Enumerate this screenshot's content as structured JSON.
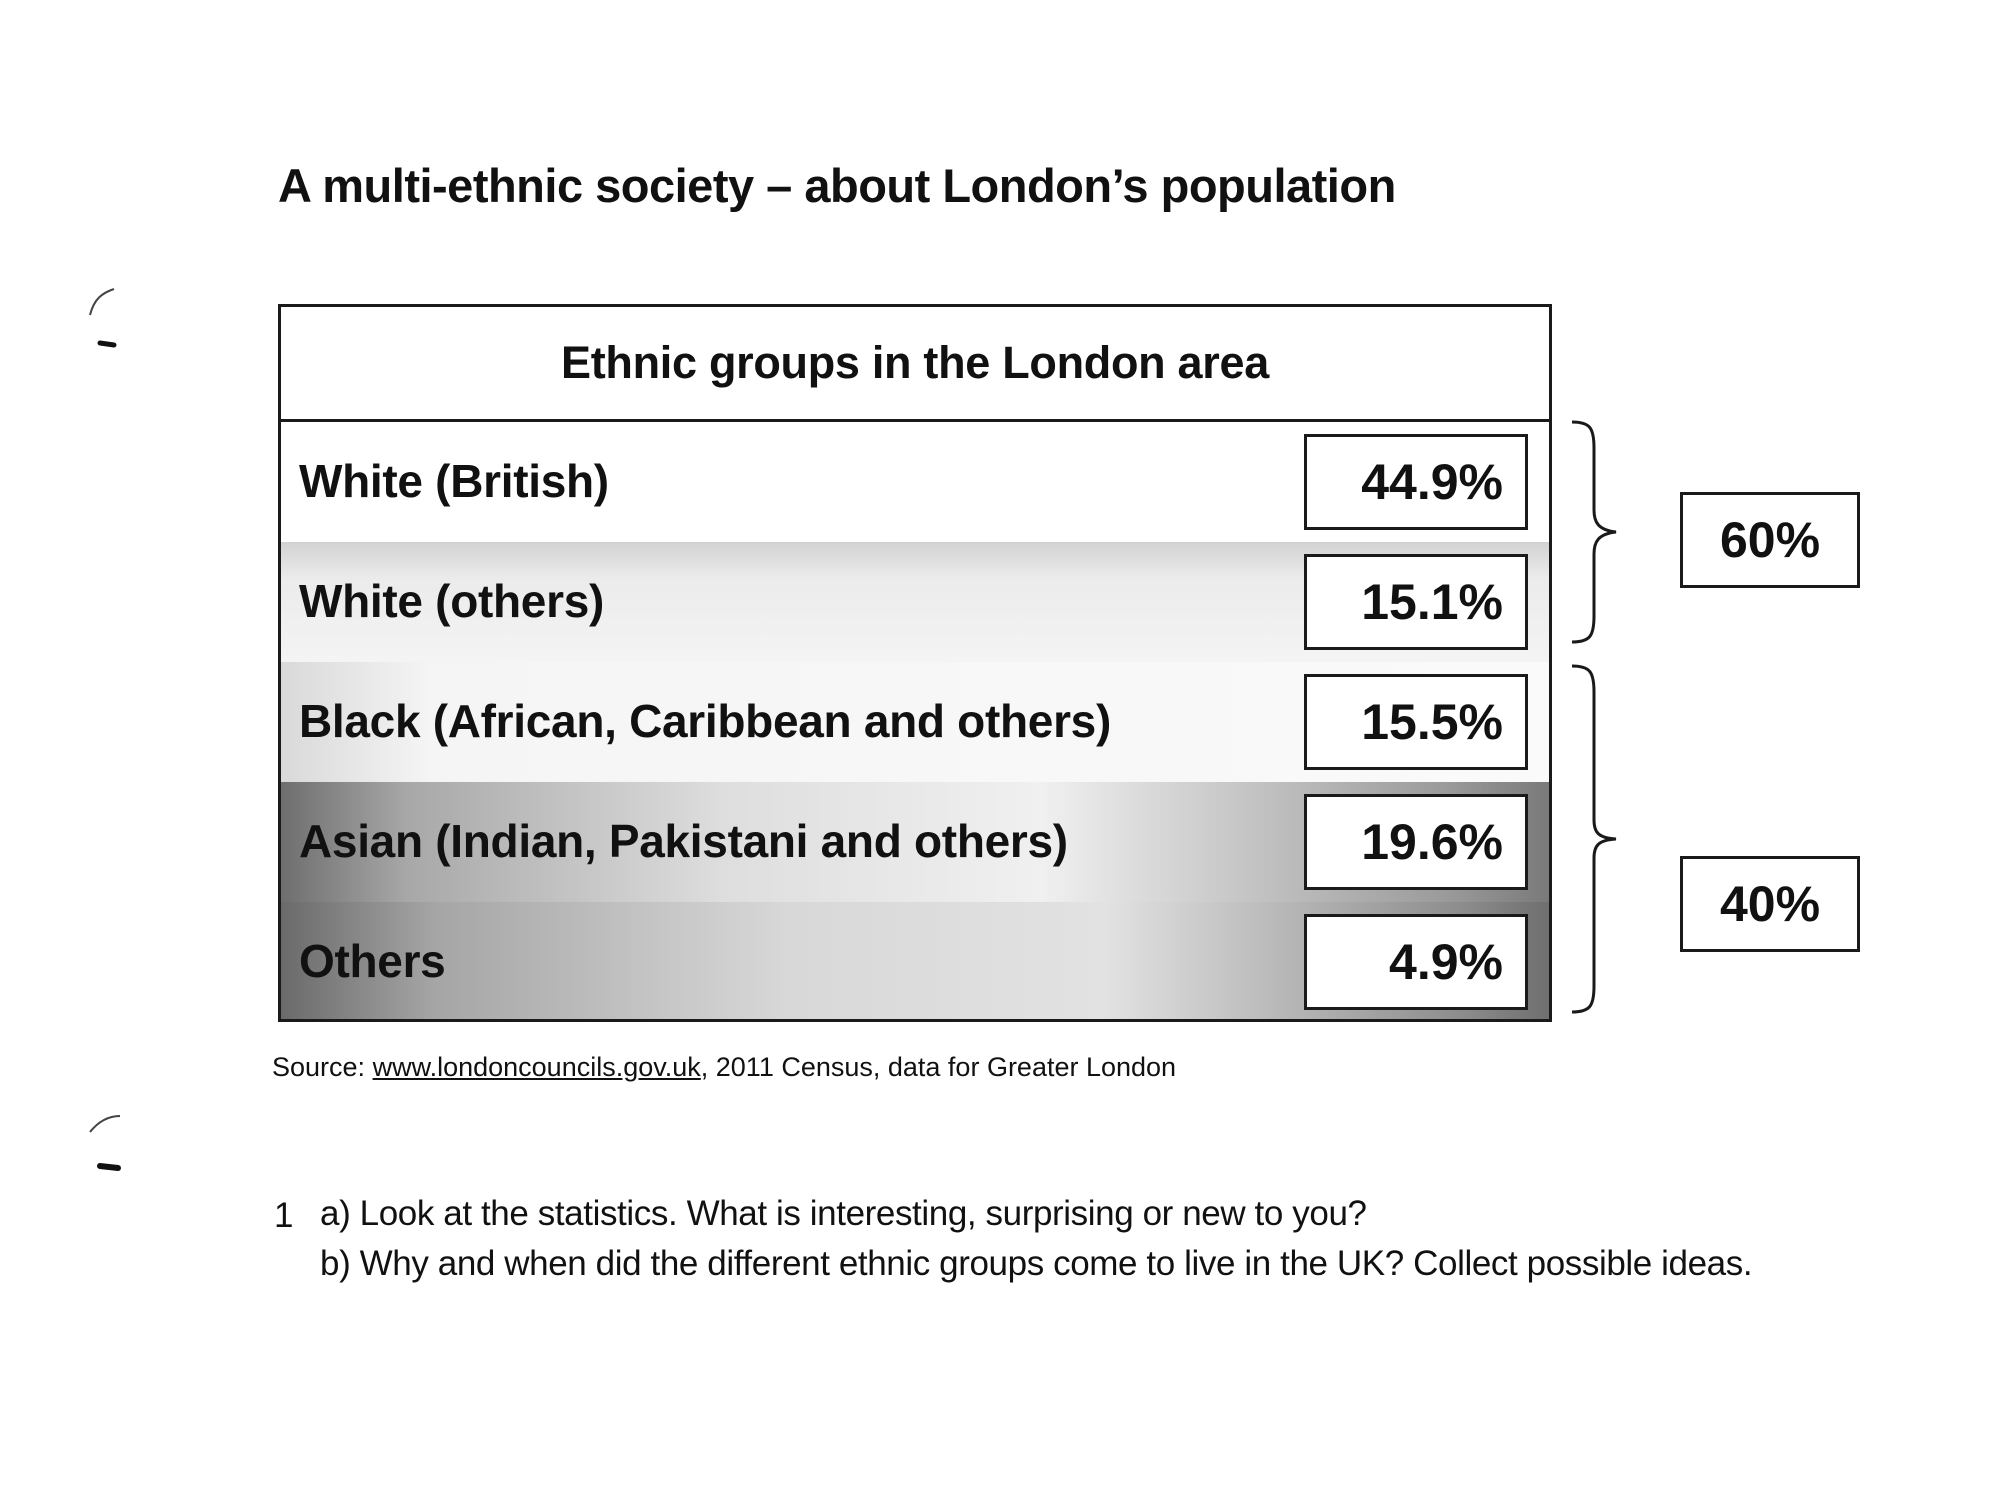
{
  "title": "A multi-ethnic society – about London’s population",
  "table": {
    "header": "Ethnic groups in the London area",
    "rows": [
      {
        "label": "White (British)",
        "value": "44.9%"
      },
      {
        "label": "White (others)",
        "value": "15.1%"
      },
      {
        "label": "Black (African, Caribbean and others)",
        "value": "15.5%"
      },
      {
        "label": "Asian (Indian, Pakistani and others)",
        "value": "19.6%"
      },
      {
        "label": "Others",
        "value": "4.9%"
      }
    ]
  },
  "groups": [
    {
      "value": "60%"
    },
    {
      "value": "40%"
    }
  ],
  "source": {
    "prefix": "Source:",
    "link": "www.londoncouncils.gov.uk",
    "suffix": ", 2011 Census, data for Greater London"
  },
  "tasks": {
    "number": "1",
    "a": "a) Look at the statistics. What is interesting, surprising or new to you?",
    "b": "b) Why and when did the different ethnic groups come to live in the UK? Collect possible ideas."
  }
}
